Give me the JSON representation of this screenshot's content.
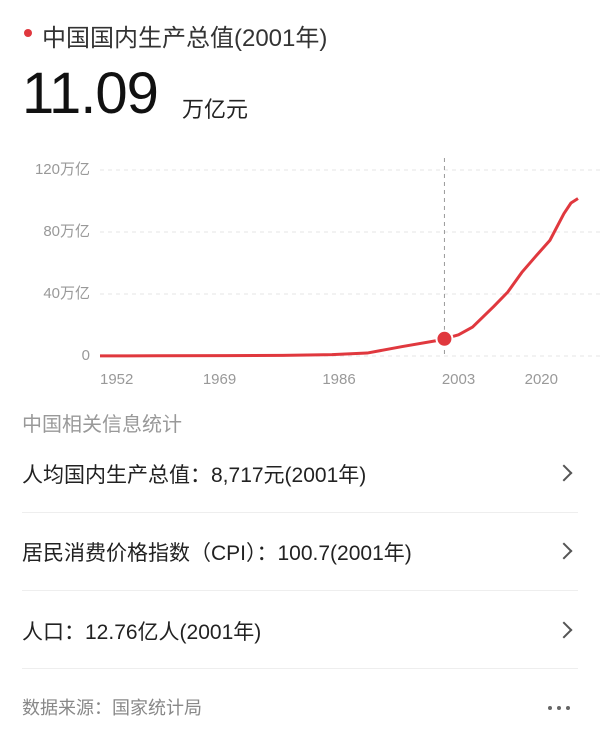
{
  "header": {
    "title": "中国国内生产总值(2001年)",
    "value": "11.09",
    "unit": "万亿元"
  },
  "chart_data": {
    "type": "line",
    "color": "#e0383e",
    "x": [
      1952,
      1960,
      1970,
      1978,
      1985,
      1990,
      1995,
      2000,
      2001,
      2003,
      2005,
      2008,
      2010,
      2012,
      2014,
      2016,
      2018,
      2019,
      2020
    ],
    "values": [
      0.07,
      0.15,
      0.23,
      0.37,
      0.9,
      1.9,
      6.1,
      10.0,
      11.09,
      13.7,
      18.7,
      31.9,
      41.2,
      53.9,
      64.4,
      74.6,
      91.9,
      98.7,
      101.6
    ],
    "highlight_x": 2001,
    "xlim": [
      1952,
      2020
    ],
    "xticks": [
      1952,
      1969,
      1986,
      2003,
      2020
    ],
    "ylim": [
      0,
      120
    ],
    "yticks": [
      0,
      {
        "value": 40,
        "label": "40万亿"
      },
      {
        "value": 80,
        "label": "80万亿"
      },
      {
        "value": 120,
        "label": "120万亿"
      }
    ],
    "grid": true
  },
  "section": {
    "title": "中国相关信息统计"
  },
  "items": [
    "人均国内生产总值：8,717元(2001年)",
    "居民消费价格指数（CPI）：100.7(2001年)",
    "人口：12.76亿人(2001年)"
  ],
  "footer": {
    "source": "数据来源：国家统计局"
  }
}
